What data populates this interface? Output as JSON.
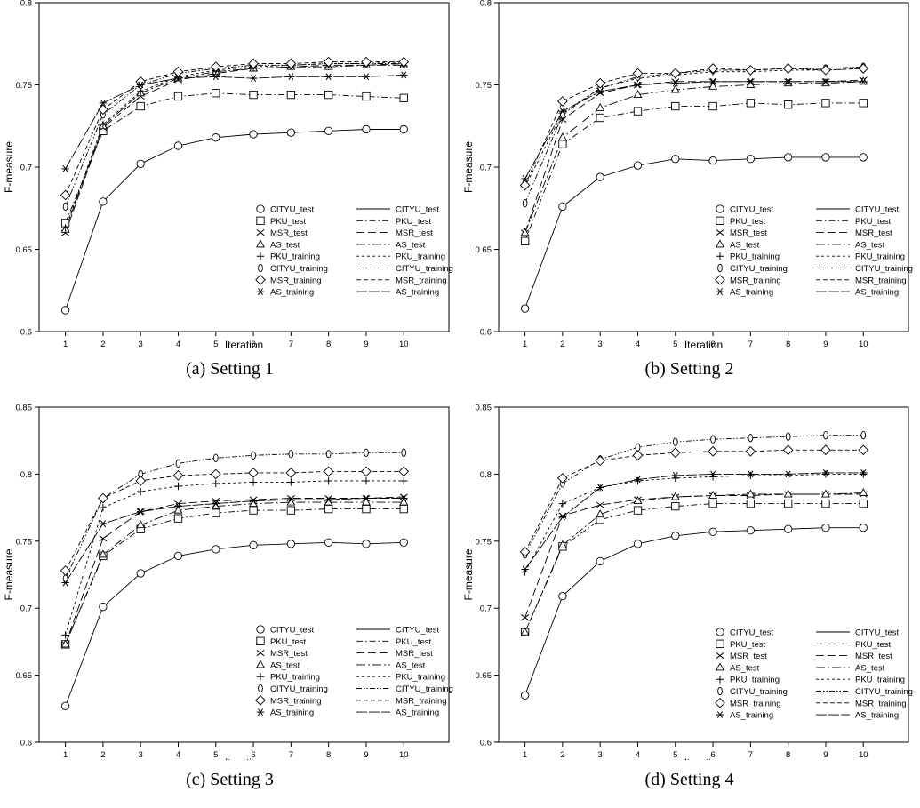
{
  "figure": {
    "panels": [
      {
        "caption": "(a)  Setting 1"
      },
      {
        "caption": "(b)  Setting 2"
      },
      {
        "caption": "(c)  Setting 3"
      },
      {
        "caption": "(d)  Setting 4"
      }
    ]
  },
  "chart_data": [
    {
      "type": "line",
      "title": "",
      "xlabel": "Iteration",
      "ylabel": "F-measure",
      "x": [
        1,
        2,
        3,
        4,
        5,
        6,
        7,
        8,
        9,
        10
      ],
      "ylim": [
        0.6,
        0.8
      ],
      "yticks": [
        "0.6",
        "0.65",
        "0.7",
        "0.75",
        "0.8"
      ],
      "grid": false,
      "legend_position": "bottom-right",
      "series": [
        {
          "name": "CITYU_test",
          "marker": "circle",
          "line": "solid",
          "values": [
            0.613,
            0.679,
            0.702,
            0.713,
            0.718,
            0.72,
            0.721,
            0.722,
            0.723,
            0.723
          ]
        },
        {
          "name": "PKU_test",
          "marker": "square",
          "line": "dashdot",
          "values": [
            0.666,
            0.722,
            0.737,
            0.743,
            0.745,
            0.744,
            0.744,
            0.744,
            0.743,
            0.742
          ]
        },
        {
          "name": "MSR_test",
          "marker": "x",
          "line": "longdash",
          "values": [
            0.66,
            0.724,
            0.743,
            0.753,
            0.757,
            0.76,
            0.761,
            0.762,
            0.762,
            0.763
          ]
        },
        {
          "name": "AS_test",
          "marker": "triangle",
          "line": "dashdotlong",
          "values": [
            0.662,
            0.725,
            0.745,
            0.754,
            0.758,
            0.76,
            0.761,
            0.761,
            0.762,
            0.762
          ]
        },
        {
          "name": "PKU_training",
          "marker": "plus",
          "line": "shortdash",
          "values": [
            0.663,
            0.726,
            0.746,
            0.755,
            0.759,
            0.761,
            0.762,
            0.763,
            0.763,
            0.764
          ]
        },
        {
          "name": "CITYU_training",
          "marker": "ellipse",
          "line": "dashdotdot",
          "values": [
            0.676,
            0.732,
            0.75,
            0.757,
            0.76,
            0.762,
            0.762,
            0.763,
            0.763,
            0.763
          ]
        },
        {
          "name": "MSR_training",
          "marker": "diamond",
          "line": "mediumdash",
          "values": [
            0.683,
            0.735,
            0.752,
            0.758,
            0.761,
            0.763,
            0.763,
            0.764,
            0.764,
            0.764
          ]
        },
        {
          "name": "AS_training",
          "marker": "asterisk",
          "line": "solidlong",
          "values": [
            0.699,
            0.739,
            0.75,
            0.754,
            0.755,
            0.754,
            0.755,
            0.755,
            0.755,
            0.756
          ]
        }
      ]
    },
    {
      "type": "line",
      "title": "",
      "xlabel": "Iteration",
      "ylabel": "F-measure",
      "x": [
        1,
        2,
        3,
        4,
        5,
        6,
        7,
        8,
        9,
        10
      ],
      "ylim": [
        0.6,
        0.8
      ],
      "yticks": [
        "0.6",
        "0.65",
        "0.7",
        "0.75",
        "0.8"
      ],
      "grid": false,
      "legend_position": "bottom-right",
      "series": [
        {
          "name": "CITYU_test",
          "marker": "circle",
          "line": "solid",
          "values": [
            0.614,
            0.676,
            0.694,
            0.701,
            0.705,
            0.704,
            0.705,
            0.706,
            0.706,
            0.706
          ]
        },
        {
          "name": "PKU_test",
          "marker": "square",
          "line": "dashdot",
          "values": [
            0.655,
            0.714,
            0.73,
            0.734,
            0.737,
            0.737,
            0.739,
            0.738,
            0.739,
            0.739
          ]
        },
        {
          "name": "MSR_test",
          "marker": "x",
          "line": "longdash",
          "values": [
            0.66,
            0.729,
            0.745,
            0.75,
            0.752,
            0.752,
            0.752,
            0.752,
            0.752,
            0.753
          ]
        },
        {
          "name": "AS_test",
          "marker": "triangle",
          "line": "dashdotlong",
          "values": [
            0.66,
            0.718,
            0.736,
            0.744,
            0.747,
            0.749,
            0.75,
            0.751,
            0.751,
            0.752
          ]
        },
        {
          "name": "PKU_training",
          "marker": "plus",
          "line": "shortdash",
          "values": [
            0.688,
            0.733,
            0.748,
            0.754,
            0.756,
            0.758,
            0.758,
            0.759,
            0.759,
            0.76
          ]
        },
        {
          "name": "CITYU_training",
          "marker": "ellipse",
          "line": "dashdotdot",
          "values": [
            0.678,
            0.732,
            0.748,
            0.755,
            0.757,
            0.759,
            0.759,
            0.76,
            0.76,
            0.761
          ]
        },
        {
          "name": "MSR_training",
          "marker": "diamond",
          "line": "mediumdash",
          "values": [
            0.689,
            0.74,
            0.751,
            0.757,
            0.757,
            0.76,
            0.759,
            0.76,
            0.759,
            0.76
          ]
        },
        {
          "name": "AS_training",
          "marker": "asterisk",
          "line": "solidlong",
          "values": [
            0.693,
            0.734,
            0.746,
            0.75,
            0.751,
            0.752,
            0.752,
            0.752,
            0.752,
            0.752
          ]
        }
      ]
    },
    {
      "type": "line",
      "title": "",
      "xlabel": "Iteration",
      "ylabel": "F-measure",
      "x": [
        1,
        2,
        3,
        4,
        5,
        6,
        7,
        8,
        9,
        10
      ],
      "ylim": [
        0.6,
        0.85
      ],
      "yticks": [
        "0.6",
        "0.65",
        "0.7",
        "0.75",
        "0.8",
        "0.85"
      ],
      "grid": false,
      "legend_position": "bottom-right",
      "series": [
        {
          "name": "CITYU_test",
          "marker": "circle",
          "line": "solid",
          "values": [
            0.627,
            0.701,
            0.726,
            0.739,
            0.744,
            0.747,
            0.748,
            0.749,
            0.748,
            0.749
          ]
        },
        {
          "name": "PKU_test",
          "marker": "square",
          "line": "dashdot",
          "values": [
            0.673,
            0.739,
            0.759,
            0.767,
            0.771,
            0.773,
            0.773,
            0.774,
            0.774,
            0.774
          ]
        },
        {
          "name": "MSR_test",
          "marker": "x",
          "line": "longdash",
          "values": [
            0.673,
            0.752,
            0.772,
            0.778,
            0.78,
            0.781,
            0.782,
            0.782,
            0.782,
            0.783
          ]
        },
        {
          "name": "AS_test",
          "marker": "triangle",
          "line": "dashdotlong",
          "values": [
            0.673,
            0.74,
            0.762,
            0.773,
            0.776,
            0.778,
            0.779,
            0.779,
            0.779,
            0.779
          ]
        },
        {
          "name": "PKU_training",
          "marker": "plus",
          "line": "shortdash",
          "values": [
            0.68,
            0.775,
            0.787,
            0.791,
            0.793,
            0.794,
            0.794,
            0.795,
            0.795,
            0.795
          ]
        },
        {
          "name": "CITYU_training",
          "marker": "ellipse",
          "line": "dashdotdot",
          "values": [
            0.722,
            0.782,
            0.8,
            0.808,
            0.812,
            0.814,
            0.815,
            0.815,
            0.816,
            0.816
          ]
        },
        {
          "name": "MSR_training",
          "marker": "diamond",
          "line": "mediumdash",
          "values": [
            0.728,
            0.782,
            0.795,
            0.799,
            0.8,
            0.801,
            0.801,
            0.802,
            0.802,
            0.802
          ]
        },
        {
          "name": "AS_training",
          "marker": "asterisk",
          "line": "solidlong",
          "values": [
            0.719,
            0.763,
            0.772,
            0.776,
            0.778,
            0.78,
            0.781,
            0.781,
            0.782,
            0.782
          ]
        }
      ]
    },
    {
      "type": "line",
      "title": "",
      "xlabel": "Iteration",
      "ylabel": "F-measure",
      "x": [
        1,
        2,
        3,
        4,
        5,
        6,
        7,
        8,
        9,
        10
      ],
      "ylim": [
        0.6,
        0.85
      ],
      "yticks": [
        "0.6",
        "0.65",
        "0.7",
        "0.75",
        "0.8",
        "0.85"
      ],
      "grid": false,
      "legend_position": "bottom-right",
      "series": [
        {
          "name": "CITYU_test",
          "marker": "circle",
          "line": "solid",
          "values": [
            0.635,
            0.709,
            0.735,
            0.748,
            0.754,
            0.757,
            0.758,
            0.759,
            0.76,
            0.76
          ]
        },
        {
          "name": "PKU_test",
          "marker": "square",
          "line": "dashdot",
          "values": [
            0.682,
            0.746,
            0.766,
            0.773,
            0.776,
            0.778,
            0.778,
            0.778,
            0.778,
            0.778
          ]
        },
        {
          "name": "MSR_test",
          "marker": "x",
          "line": "longdash",
          "values": [
            0.693,
            0.769,
            0.777,
            0.781,
            0.783,
            0.784,
            0.784,
            0.785,
            0.785,
            0.785
          ]
        },
        {
          "name": "AS_test",
          "marker": "triangle",
          "line": "dashdotlong",
          "values": [
            0.682,
            0.747,
            0.77,
            0.78,
            0.783,
            0.784,
            0.785,
            0.785,
            0.785,
            0.786
          ]
        },
        {
          "name": "PKU_training",
          "marker": "plus",
          "line": "shortdash",
          "values": [
            0.727,
            0.778,
            0.79,
            0.795,
            0.797,
            0.798,
            0.799,
            0.799,
            0.8,
            0.8
          ]
        },
        {
          "name": "CITYU_training",
          "marker": "ellipse",
          "line": "dashdotdot",
          "values": [
            0.74,
            0.793,
            0.811,
            0.82,
            0.824,
            0.826,
            0.827,
            0.828,
            0.829,
            0.829
          ]
        },
        {
          "name": "MSR_training",
          "marker": "diamond",
          "line": "mediumdash",
          "values": [
            0.742,
            0.797,
            0.81,
            0.814,
            0.816,
            0.817,
            0.817,
            0.818,
            0.818,
            0.818
          ]
        },
        {
          "name": "AS_training",
          "marker": "asterisk",
          "line": "solidlong",
          "values": [
            0.729,
            0.768,
            0.79,
            0.796,
            0.799,
            0.8,
            0.8,
            0.8,
            0.801,
            0.801
          ]
        }
      ]
    }
  ]
}
